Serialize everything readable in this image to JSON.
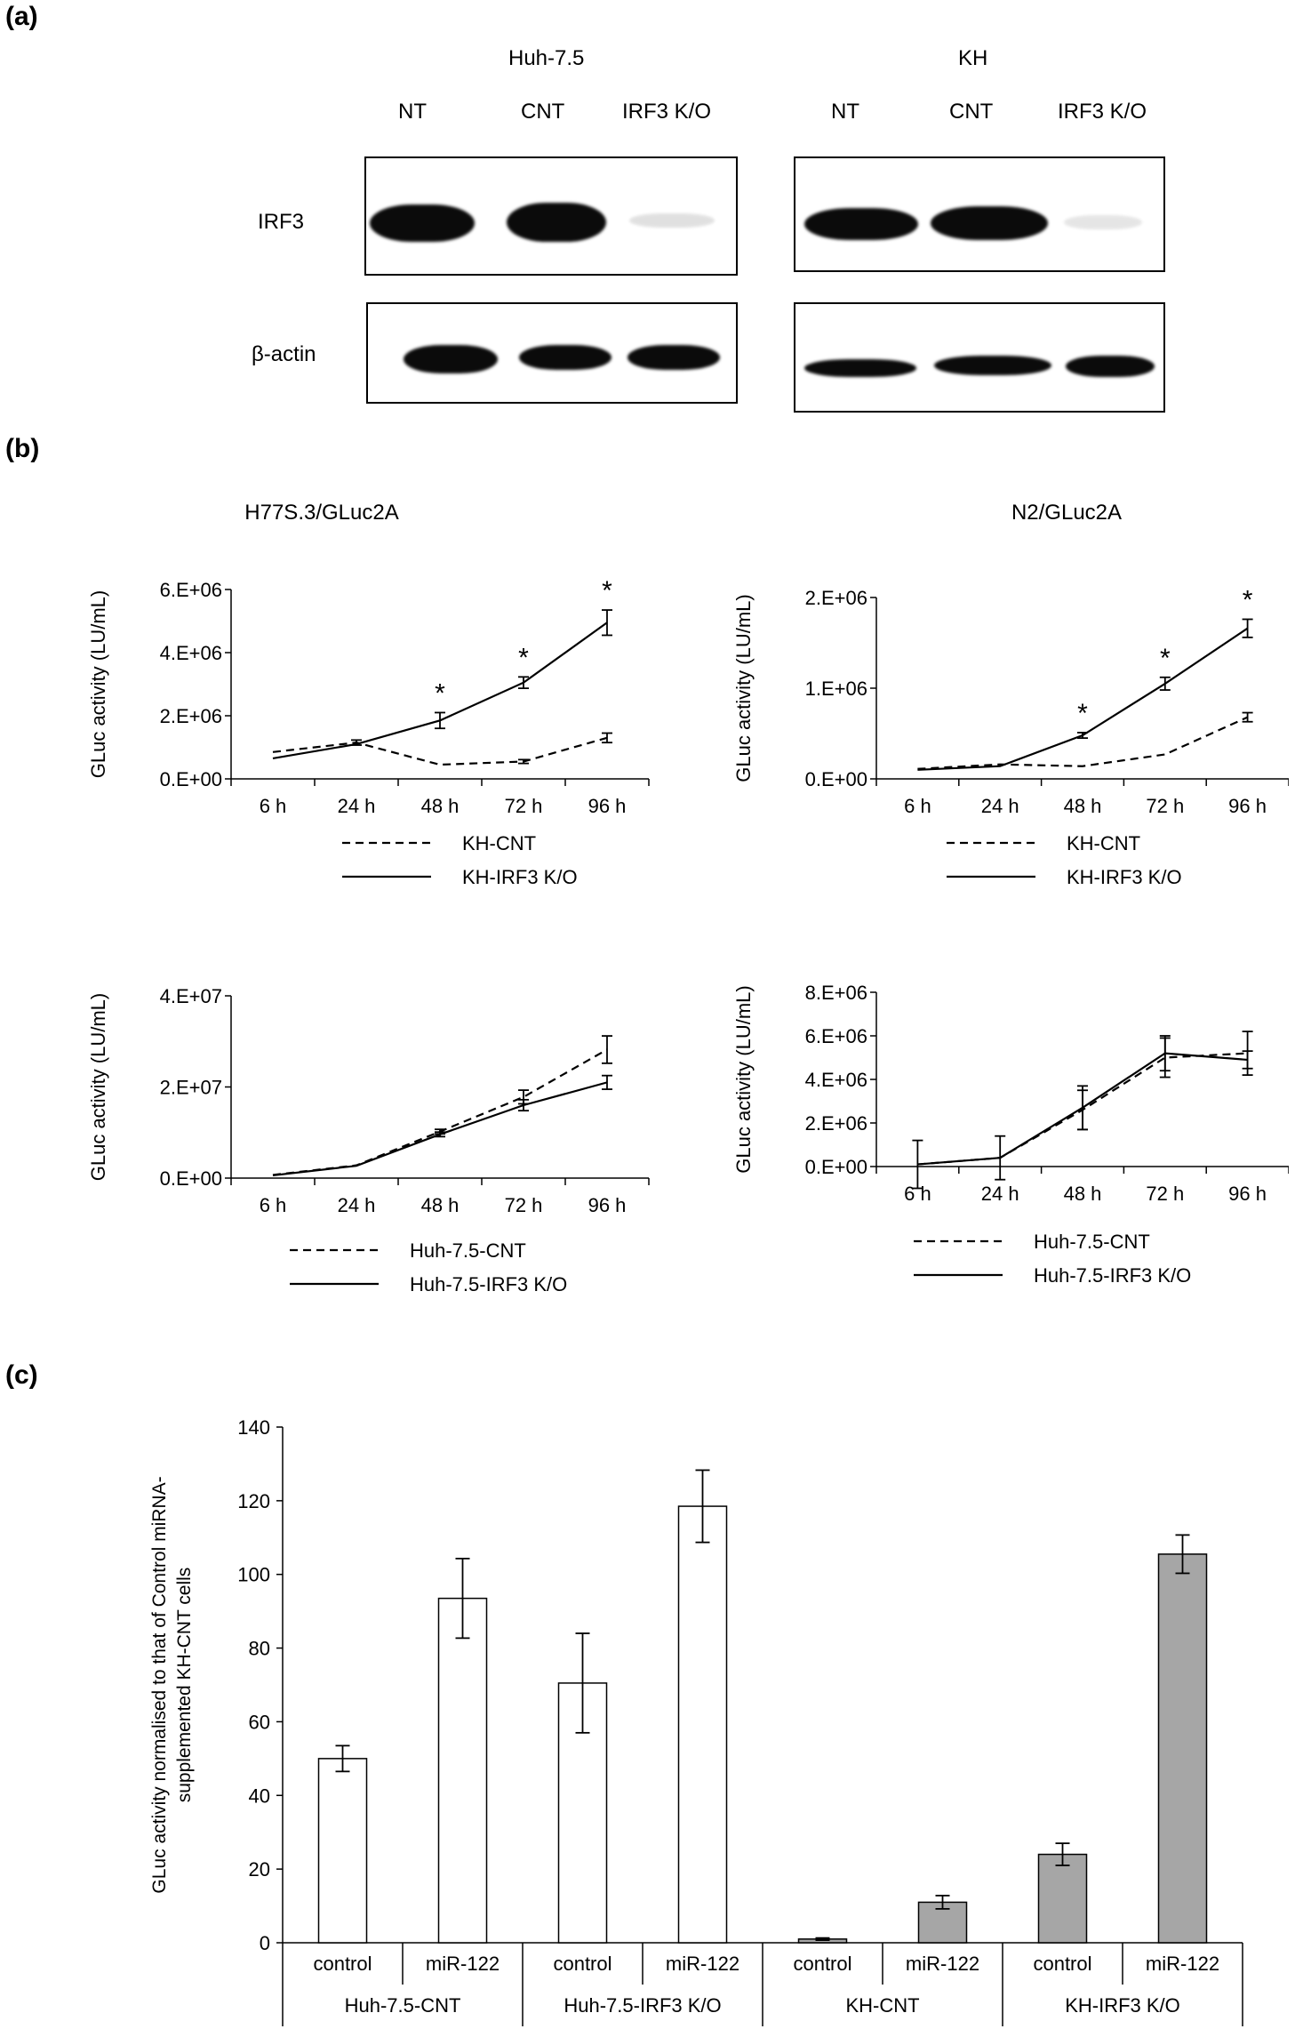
{
  "panel_a": {
    "tag": "(a)",
    "groups": [
      {
        "name": "Huh-7.5",
        "lanes": [
          "NT",
          "CNT",
          "IRF3 K/O"
        ]
      },
      {
        "name": "KH",
        "lanes": [
          "NT",
          "CNT",
          "IRF3 K/O"
        ]
      }
    ],
    "rows": [
      "IRF3",
      "β-actin"
    ],
    "band_intensity": {
      "IRF3": {
        "Huh-7.5": [
          1.0,
          1.0,
          0.12
        ],
        "KH": [
          0.95,
          1.0,
          0.1
        ]
      },
      "β-actin": {
        "Huh-7.5": [
          1.0,
          0.95,
          0.95
        ],
        "KH": [
          0.85,
          0.85,
          0.9
        ]
      }
    }
  },
  "panel_b": {
    "tag": "(b)"
  },
  "panel_c": {
    "tag": "(c)"
  },
  "chart_data": [
    {
      "type": "line",
      "title": "H77S.3/GLuc2A",
      "ylabel": "GLuc activity (LU/mL)",
      "categories": [
        "6  h",
        "24  h",
        "48  h",
        "72  h",
        "96  h"
      ],
      "yticks": [
        "0.E+00",
        "2.E+06",
        "4.E+06",
        "6.E+06"
      ],
      "ylim": [
        0,
        6000000
      ],
      "series": [
        {
          "name": "KH-CNT",
          "style": "dashed",
          "values": [
            850000,
            1150000,
            450000,
            550000,
            1300000
          ],
          "errors": [
            0,
            80000,
            0,
            60000,
            150000
          ]
        },
        {
          "name": "KH-IRF3 K/O",
          "style": "solid",
          "values": [
            650000,
            1100000,
            1850000,
            3050000,
            4950000
          ],
          "errors": [
            0,
            0,
            250000,
            180000,
            400000
          ]
        }
      ],
      "significance": [
        "",
        "",
        "*",
        "*",
        "*"
      ]
    },
    {
      "type": "line",
      "title": "N2/GLuc2A",
      "ylabel": "GLuc activity (LU/mL)",
      "categories": [
        "6  h",
        "24  h",
        "48  h",
        "72  h",
        "96  h"
      ],
      "yticks": [
        "0.E+00",
        "1.E+06",
        "2.E+06"
      ],
      "ylim": [
        0,
        2000000
      ],
      "series": [
        {
          "name": "KH-CNT",
          "style": "dashed",
          "values": [
            110000,
            160000,
            140000,
            270000,
            680000
          ],
          "errors": [
            0,
            0,
            0,
            0,
            50000
          ]
        },
        {
          "name": "KH-IRF3 K/O",
          "style": "solid",
          "values": [
            100000,
            140000,
            480000,
            1050000,
            1660000
          ],
          "errors": [
            0,
            0,
            30000,
            70000,
            100000
          ]
        }
      ],
      "significance": [
        "",
        "",
        "*",
        "*",
        "*"
      ]
    },
    {
      "type": "line",
      "title": "",
      "ylabel": "GLuc activity (LU/mL)",
      "categories": [
        "6  h",
        "24  h",
        "48  h",
        "72  h",
        "96  h"
      ],
      "yticks": [
        "0.E+00",
        "2.E+07",
        "4.E+07"
      ],
      "ylim": [
        0,
        40000000
      ],
      "series": [
        {
          "name": "Huh-7.5-CNT",
          "style": "dashed",
          "values": [
            700000,
            2800000,
            10200000,
            17800000,
            28200000
          ],
          "errors": [
            0,
            0,
            500000,
            1500000,
            3000000
          ]
        },
        {
          "name": "Huh-7.5-IRF3 K/O",
          "style": "solid",
          "values": [
            600000,
            2700000,
            9600000,
            16000000,
            21000000
          ],
          "errors": [
            0,
            0,
            500000,
            1200000,
            1500000
          ]
        }
      ],
      "significance": [
        "",
        "",
        "",
        "",
        ""
      ]
    },
    {
      "type": "line",
      "title": "",
      "ylabel": "GLuc activity (LU/mL)",
      "categories": [
        "6  h",
        "24  h",
        "48  h",
        "72  h",
        "96  h"
      ],
      "yticks": [
        "0.E+00",
        "2.E+06",
        "4.E+06",
        "6.E+06",
        "8.E+06"
      ],
      "ylim": [
        0,
        8000000
      ],
      "series": [
        {
          "name": "Huh-7.5-CNT",
          "style": "dashed",
          "values": [
            100000,
            400000,
            2600000,
            5000000,
            5200000
          ],
          "errors": [
            1100000,
            1000000,
            900000,
            900000,
            1000000
          ]
        },
        {
          "name": "Huh-7.5-IRF3 K/O",
          "style": "solid",
          "values": [
            100000,
            400000,
            2700000,
            5200000,
            4900000
          ],
          "errors": [
            0,
            0,
            1000000,
            800000,
            400000
          ]
        }
      ],
      "significance": [
        "",
        "",
        "",
        "",
        ""
      ]
    },
    {
      "type": "bar",
      "title": "",
      "ylabel": "GLuc activity normalised to that  of Control miRNA-supplemented KH-CNT cells",
      "yticks": [
        "0",
        "20",
        "40",
        "60",
        "80",
        "100",
        "120",
        "140"
      ],
      "ylim": [
        0,
        140
      ],
      "categories": [
        "control",
        "miR-122",
        "control",
        "miR-122",
        "control",
        "miR-122",
        "control",
        "miR-122"
      ],
      "groups": [
        "Huh-7.5-CNT",
        "Huh-7.5-IRF3 K/O",
        "KH-CNT",
        "KH-IRF3 K/O"
      ],
      "values": [
        50,
        93.5,
        70.5,
        118.5,
        1,
        11,
        24,
        105.5
      ],
      "errors": [
        3.5,
        10.8,
        13.5,
        9.8,
        0.3,
        1.8,
        3,
        5.2
      ],
      "fills": [
        "#ffffff",
        "#ffffff",
        "#ffffff",
        "#ffffff",
        "#a6a6a6",
        "#a6a6a6",
        "#a6a6a6",
        "#a6a6a6"
      ]
    }
  ]
}
